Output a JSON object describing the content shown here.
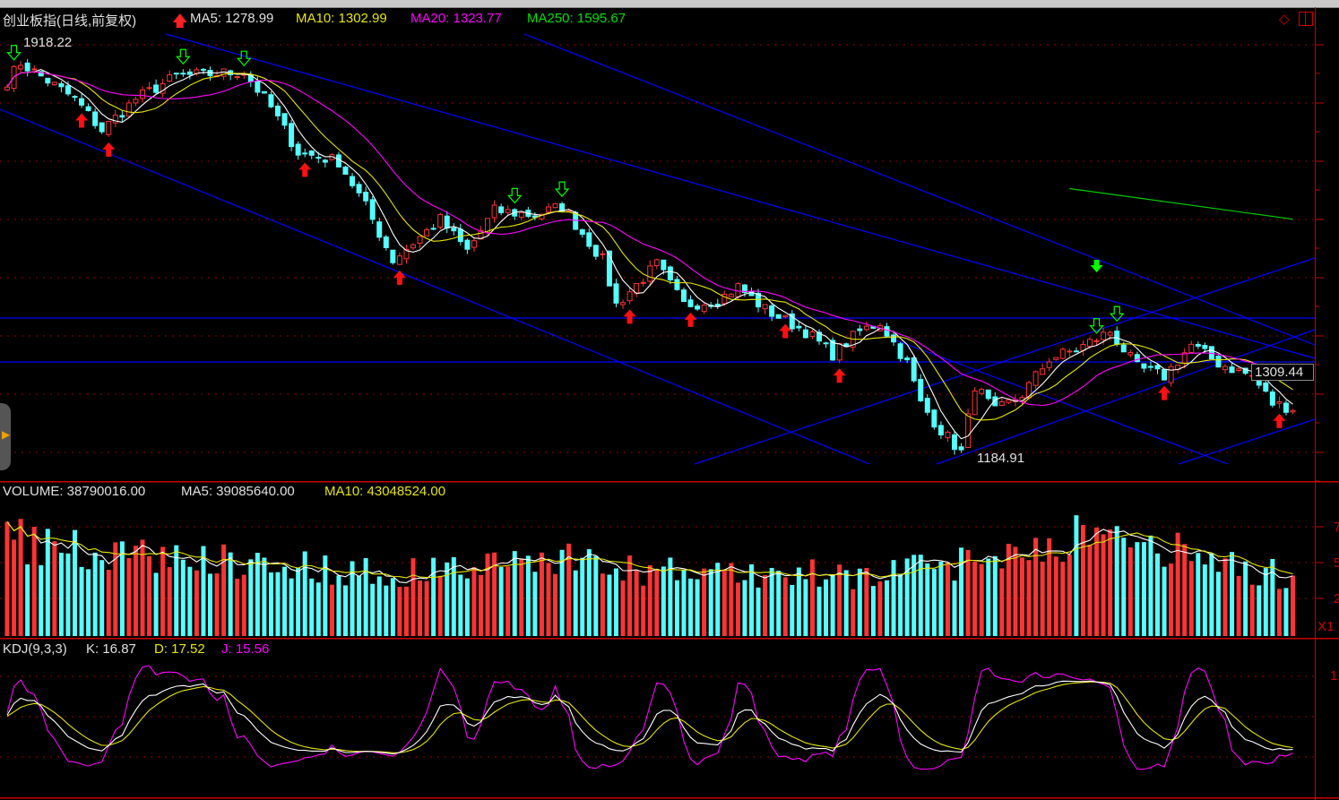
{
  "header": {
    "title": "创业板指(日线,前复权)",
    "ma5": "MA5: 1278.99",
    "ma10": "MA10: 1302.99",
    "ma20": "MA20: 1323.77",
    "ma250": "MA250: 1595.67",
    "high_label": "1918.22",
    "low_label": "1184.91",
    "last_label": "1309.44"
  },
  "volume_panel": {
    "volume": "VOLUME: 38790016.00",
    "ma5": "MA5: 39085640.00",
    "ma10": "MA10: 43048524.00",
    "axis_ticks": [
      "7",
      "5",
      "2"
    ],
    "unit": "X1"
  },
  "kdj_panel": {
    "name": "KDJ(9,3,3)",
    "k": "K: 16.87",
    "d": "D: 17.52",
    "j": "J: 15.56",
    "axis_ticks": [
      "1"
    ]
  },
  "colors": {
    "up": "#ff3333",
    "down": "#54ffff",
    "ma5": "#ffffff",
    "ma10": "#e6e600",
    "ma20": "#ff00ff",
    "ma250": "#00cc00",
    "trendline": "#0000ff",
    "grid": "#990000"
  },
  "chart_data": {
    "type": "candlestick",
    "candle_count": 191,
    "ylim": [
      1144,
      1980
    ],
    "price_path": [
      [
        0,
        1850
      ],
      [
        2,
        1882
      ],
      [
        10,
        1818
      ],
      [
        14,
        1763
      ],
      [
        19,
        1818
      ],
      [
        25,
        1858
      ],
      [
        35,
        1866
      ],
      [
        39,
        1803
      ],
      [
        43,
        1724
      ],
      [
        49,
        1708
      ],
      [
        53,
        1629
      ],
      [
        57,
        1534
      ],
      [
        64,
        1605
      ],
      [
        68,
        1550
      ],
      [
        72,
        1621
      ],
      [
        78,
        1613
      ],
      [
        82,
        1629
      ],
      [
        88,
        1534
      ],
      [
        90,
        1455
      ],
      [
        96,
        1526
      ],
      [
        100,
        1455
      ],
      [
        105,
        1463
      ],
      [
        108,
        1487
      ],
      [
        112,
        1447
      ],
      [
        118,
        1408
      ],
      [
        122,
        1368
      ],
      [
        126,
        1408
      ],
      [
        129,
        1424
      ],
      [
        133,
        1352
      ],
      [
        135,
        1281
      ],
      [
        138,
        1234
      ],
      [
        141,
        1195
      ],
      [
        143,
        1313
      ],
      [
        146,
        1266
      ],
      [
        150,
        1297
      ],
      [
        154,
        1360
      ],
      [
        158,
        1376
      ],
      [
        163,
        1408
      ],
      [
        167,
        1344
      ],
      [
        171,
        1329
      ],
      [
        175,
        1384
      ],
      [
        179,
        1352
      ],
      [
        184,
        1329
      ],
      [
        187,
        1281
      ],
      [
        190,
        1273
      ]
    ],
    "volume_path_millions": [
      [
        0,
        70
      ],
      [
        5,
        60
      ],
      [
        20,
        55
      ],
      [
        40,
        50
      ],
      [
        55,
        42
      ],
      [
        70,
        48
      ],
      [
        82,
        55
      ],
      [
        90,
        45
      ],
      [
        110,
        42
      ],
      [
        125,
        42
      ],
      [
        135,
        45
      ],
      [
        140,
        50
      ],
      [
        145,
        55
      ],
      [
        150,
        60
      ],
      [
        160,
        70
      ],
      [
        165,
        65
      ],
      [
        175,
        55
      ],
      [
        185,
        45
      ],
      [
        190,
        39
      ]
    ],
    "ma250_visible": [
      [
        157,
        1660
      ],
      [
        190,
        1606
      ]
    ],
    "sell_signals": [
      1,
      26,
      35,
      75,
      82,
      161,
      164
    ],
    "buy_signals": [
      11,
      15,
      44,
      58,
      92,
      101,
      115,
      123,
      188,
      171
    ],
    "buy_signal_filled_green": [
      161
    ]
  }
}
